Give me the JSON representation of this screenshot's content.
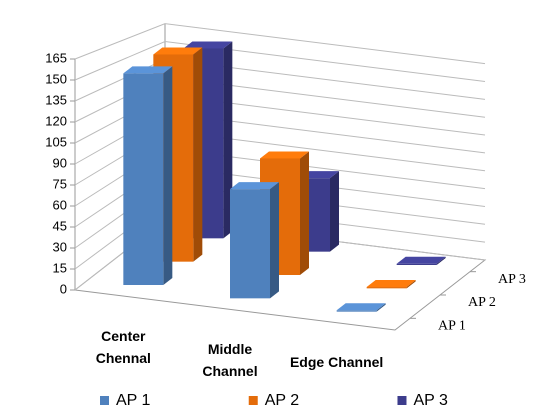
{
  "chart_data": {
    "type": "bar3d",
    "categories": [
      "Center Chennal",
      "Middle Channel",
      "Edge Channel"
    ],
    "series": [
      {
        "name": "AP 1",
        "color": "#4f81bd",
        "values": [
          155,
          80,
          1
        ]
      },
      {
        "name": "AP 2",
        "color": "#e46c0a",
        "values": [
          160,
          90,
          1
        ]
      },
      {
        "name": "AP 3",
        "color": "#3c3c8c",
        "values": [
          155,
          60,
          1
        ]
      }
    ],
    "ylim": [
      0,
      165
    ],
    "yticks": [
      0,
      15,
      30,
      45,
      60,
      75,
      90,
      105,
      120,
      135,
      150,
      165
    ],
    "grid": true,
    "legend": "bottom"
  }
}
